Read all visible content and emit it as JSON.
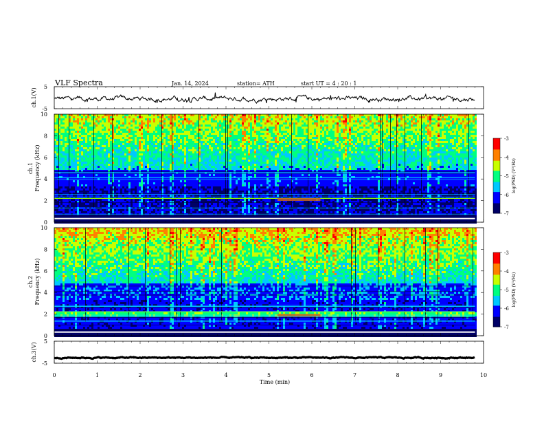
{
  "header": {
    "title": "VLF  Spectra",
    "date": "Jan. 14, 2024",
    "station": "station= ATH",
    "start": "start  UT  =   4  : 20 : 1"
  },
  "chart_data": [
    {
      "type": "line",
      "panel": "ch1-waveform",
      "ylabel": "ch.1(V)",
      "yticks": [
        "5",
        "-5"
      ],
      "ylim": [
        -5,
        5
      ],
      "xlim": [
        0,
        10
      ],
      "x_end": 9.8,
      "baseline": -0.5,
      "noise_amplitude": 0.6
    },
    {
      "type": "heatmap",
      "panel": "ch1-spectrogram",
      "ylabel": "ch.1\nFrequency  (kHz)",
      "ylabel_lines": [
        "ch.1",
        "Frequency  (kHz)"
      ],
      "yticks": [
        "0",
        "2",
        "4",
        "6",
        "8",
        "10"
      ],
      "ylim": [
        0,
        10
      ],
      "xlim": [
        0,
        10
      ],
      "x_end": 9.8,
      "dominant_band_khz": [
        1.0,
        2.2
      ],
      "highlight": {
        "x": [
          5.2,
          6.2
        ],
        "freq_khz": 2.1
      },
      "colorbar": {
        "label": "log(PSD) (V²/Hz)",
        "ticks": [
          "-3",
          "-4",
          "-5",
          "-6",
          "-7"
        ],
        "range": [
          -7,
          -3
        ]
      }
    },
    {
      "type": "heatmap",
      "panel": "ch2-spectrogram",
      "ylabel": "ch.2\nFrequency  (kHz)",
      "ylabel_lines": [
        "ch.2",
        "Frequency  (kHz)"
      ],
      "yticks": [
        "0",
        "2",
        "4",
        "6",
        "8",
        "10"
      ],
      "ylim": [
        0,
        10
      ],
      "xlim": [
        0,
        10
      ],
      "x_end": 9.8,
      "dominant_band_khz": [
        1.9,
        2.2
      ],
      "highlight": {
        "x": [
          5.2,
          6.2
        ],
        "freq_khz": 1.9
      },
      "colorbar": {
        "label": "log(PSD) (V²/Hz)",
        "ticks": [
          "-3",
          "-4",
          "-5",
          "-6",
          "-7"
        ],
        "range": [
          -7,
          -3
        ]
      }
    },
    {
      "type": "line",
      "panel": "ch3-waveform",
      "ylabel": "ch.3(V)",
      "yticks": [
        "5",
        "-5"
      ],
      "ylim": [
        -5,
        5
      ],
      "xlim": [
        0,
        10
      ],
      "x_end": 9.8,
      "baseline": -2.5,
      "noise_amplitude": 0.15
    }
  ],
  "x_axis": {
    "label": "Time  (min)",
    "ticks": [
      "0",
      "1",
      "2",
      "3",
      "4",
      "5",
      "6",
      "7",
      "8",
      "9",
      "10"
    ]
  },
  "colors": {
    "colormap": [
      "#000066",
      "#0000ff",
      "#00c8ff",
      "#00ff80",
      "#c8ff00",
      "#ff8000",
      "#ff0000",
      "#ffffff"
    ]
  }
}
